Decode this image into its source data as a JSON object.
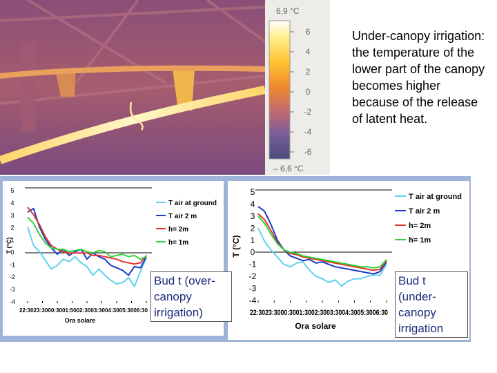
{
  "thermal_scale": {
    "max_label": "6,9 °C",
    "min_label": "– 6,6 °C",
    "ticks": [
      "6",
      "4",
      "2",
      "0",
      "-2",
      "-4",
      "-6"
    ],
    "gradient_colors": [
      "#ffffff",
      "#fff08a",
      "#ffc233",
      "#ef8a2c",
      "#c46a6e",
      "#7a5e9a",
      "#4b4c7e"
    ]
  },
  "caption": {
    "text": "Under-canopy irrigation: the temperature of the lower part of the canopy becomes higher because of the release of latent heat."
  },
  "callouts": {
    "left": "Bud t (over-canopy irrigation)",
    "right": "Bud t (under-canopy irrigation"
  },
  "colors": {
    "series": [
      "#5ed1ee",
      "#1a3ac8",
      "#e2352d",
      "#2ed43a"
    ],
    "panel_background": "#9fb3d8"
  },
  "chart_data": [
    {
      "type": "line",
      "ylabel": "T (°C)",
      "xlabel": "Ora solare",
      "ylim": [
        -4,
        5
      ],
      "yticks": [
        "5",
        "4",
        "3",
        "2",
        "1",
        "0",
        "-1",
        "-2",
        "-3",
        "-4"
      ],
      "xtick_text": "22:3023:3000:3001:5002:3003:3004:3005:3006:30",
      "grid": false,
      "legend_position": "right",
      "x": [
        0,
        0.05,
        0.1,
        0.15,
        0.2,
        0.25,
        0.3,
        0.35,
        0.4,
        0.45,
        0.5,
        0.55,
        0.6,
        0.65,
        0.7,
        0.75,
        0.8,
        0.85,
        0.9,
        0.95,
        1.0
      ],
      "series": [
        {
          "name": "T air at ground",
          "values": [
            2.0,
            0.5,
            0.0,
            -0.7,
            -1.4,
            -1.1,
            -0.6,
            -0.8,
            -0.4,
            -0.9,
            -1.2,
            -1.9,
            -1.4,
            -1.9,
            -2.3,
            -2.6,
            -2.5,
            -2.1,
            -2.8,
            -1.6,
            -0.5
          ]
        },
        {
          "name": "T air 2 m",
          "values": [
            3.2,
            3.5,
            2.0,
            1.0,
            0.3,
            -0.2,
            0.2,
            -0.3,
            0.0,
            0.2,
            -0.6,
            -0.1,
            -0.4,
            -0.6,
            -1.1,
            -1.3,
            -1.5,
            -1.9,
            -1.2,
            -1.3,
            -0.4
          ]
        },
        {
          "name": "h= 2m",
          "values": [
            3.6,
            3.0,
            2.2,
            1.2,
            0.5,
            0.2,
            0.0,
            -0.1,
            -0.1,
            -0.1,
            -0.1,
            -0.3,
            -0.3,
            -0.4,
            -0.5,
            -0.6,
            -0.8,
            -0.9,
            -1.0,
            -0.9,
            -0.3
          ]
        },
        {
          "name": "h= 1m",
          "values": [
            2.8,
            2.3,
            1.4,
            0.7,
            0.3,
            0.2,
            0.2,
            0.0,
            0.1,
            0.2,
            0.0,
            -0.1,
            0.1,
            0.0,
            -0.4,
            -0.3,
            -0.2,
            -0.4,
            -0.3,
            -0.6,
            -0.4
          ]
        }
      ]
    },
    {
      "type": "line",
      "ylabel": "T (°C)",
      "xlabel": "Ora solare",
      "ylim": [
        -4,
        5
      ],
      "yticks": [
        "5",
        "4",
        "3",
        "2",
        "1",
        "0",
        "-1",
        "-2",
        "-3",
        "-4"
      ],
      "xtick_text": "22:3023:3000:3001:3002:3003:3004:3005:3006:30",
      "grid": false,
      "legend_position": "right",
      "x": [
        0,
        0.05,
        0.1,
        0.15,
        0.2,
        0.25,
        0.3,
        0.35,
        0.4,
        0.45,
        0.5,
        0.55,
        0.6,
        0.65,
        0.7,
        0.75,
        0.8,
        0.85,
        0.9,
        0.95,
        1.0
      ],
      "series": [
        {
          "name": "T air at ground",
          "values": [
            2.0,
            0.9,
            0.2,
            -0.4,
            -1.0,
            -1.2,
            -0.9,
            -0.8,
            -1.5,
            -2.0,
            -2.2,
            -2.5,
            -2.3,
            -2.8,
            -2.4,
            -2.2,
            -2.2,
            -2.0,
            -1.9,
            -1.9,
            -1.0
          ]
        },
        {
          "name": "T air 2 m",
          "values": [
            3.8,
            3.4,
            2.3,
            1.0,
            0.2,
            -0.3,
            -0.5,
            -0.7,
            -0.6,
            -0.9,
            -0.8,
            -1.0,
            -1.2,
            -1.3,
            -1.4,
            -1.5,
            -1.6,
            -1.7,
            -1.8,
            -1.6,
            -0.8
          ]
        },
        {
          "name": "h= 2m",
          "values": [
            3.2,
            2.7,
            1.8,
            0.8,
            0.2,
            -0.1,
            -0.2,
            -0.4,
            -0.5,
            -0.6,
            -0.7,
            -0.8,
            -0.9,
            -1.0,
            -1.1,
            -1.2,
            -1.3,
            -1.4,
            -1.5,
            -1.4,
            -0.7
          ]
        },
        {
          "name": "h= 1m",
          "values": [
            3.0,
            2.4,
            1.5,
            0.7,
            0.2,
            0.0,
            -0.1,
            -0.3,
            -0.4,
            -0.5,
            -0.6,
            -0.7,
            -0.8,
            -0.9,
            -1.0,
            -1.1,
            -1.2,
            -1.2,
            -1.3,
            -1.2,
            -0.6
          ]
        }
      ]
    }
  ]
}
